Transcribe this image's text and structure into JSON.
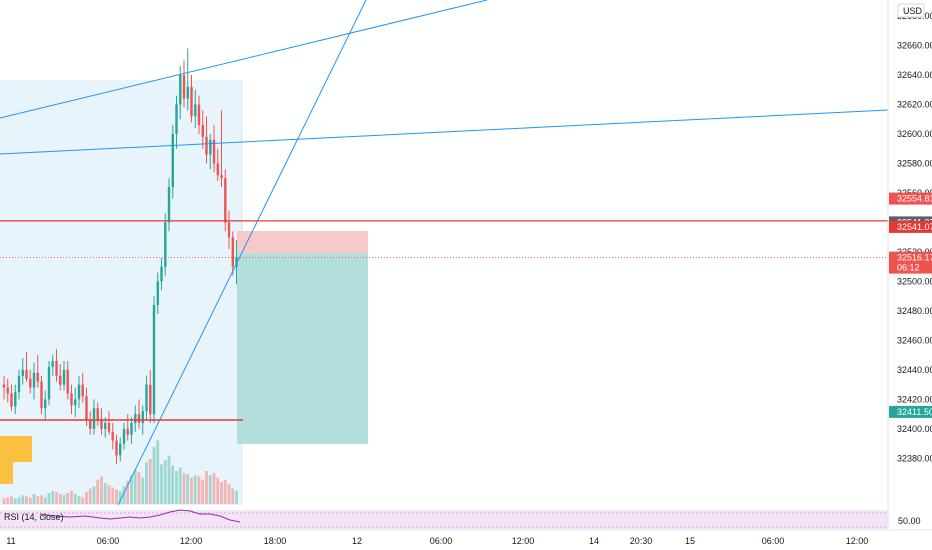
{
  "currency": "USD",
  "indicator_label": "RSI (14, close)",
  "rsi_level": "50.00",
  "colors": {
    "up": "#26a69a",
    "down": "#ef5350",
    "hline": "#e53935",
    "trend": "#2196f3",
    "range_fill": "#e8f4fb",
    "target_zone": "#b2dfdb",
    "stop_zone": "#f8c9c9",
    "rsi_band": "#f3e5f5",
    "rsi_line": "#9c27b0",
    "highlight": "#f9c13f"
  },
  "chart_data": {
    "type": "candlestick",
    "yaxis": {
      "ticks": [
        "32680.00",
        "32660.00",
        "32640.00",
        "32620.00",
        "32600.00",
        "32580.00",
        "32560.00",
        "32540.00",
        "32520.00",
        "32500.00",
        "32480.00",
        "32460.00",
        "32440.00",
        "32420.00",
        "32400.00",
        "32380.00"
      ],
      "range": [
        32366,
        32696
      ]
    },
    "xaxis": {
      "ticks": [
        "11",
        "06:00",
        "12:00",
        "18:00",
        "12",
        "06:00",
        "12:00",
        "14",
        "20:30",
        "15",
        "06:00",
        "12:00"
      ]
    },
    "price_tags": [
      {
        "value": "32554.81",
        "price": 32554.81,
        "kind": "stop"
      },
      {
        "value": "32541.37",
        "price": 32541.37,
        "kind": "entry"
      },
      {
        "value": "32541.07",
        "price": 32541.07,
        "kind": "line"
      },
      {
        "value": "32516.17",
        "price": 32516.17,
        "kind": "last",
        "sub": "06:12"
      },
      {
        "value": "32411.50",
        "price": 32411.5,
        "kind": "target"
      }
    ],
    "horizontal_lines": [
      32541.07,
      32406
    ],
    "position": {
      "entry": 32541.37,
      "stop": 32554.81,
      "target": 32411.5
    },
    "candles": [
      [
        32430,
        32436,
        32420,
        32428
      ],
      [
        32428,
        32434,
        32418,
        32424
      ],
      [
        32424,
        32430,
        32412,
        32415
      ],
      [
        32415,
        32430,
        32410,
        32425
      ],
      [
        32425,
        32440,
        32420,
        32436
      ],
      [
        32436,
        32448,
        32430,
        32440
      ],
      [
        32440,
        32452,
        32432,
        32434
      ],
      [
        32434,
        32440,
        32424,
        32428
      ],
      [
        32428,
        32445,
        32420,
        32438
      ],
      [
        32438,
        32450,
        32428,
        32432
      ],
      [
        32432,
        32436,
        32410,
        32414
      ],
      [
        32414,
        32426,
        32406,
        32420
      ],
      [
        32420,
        32446,
        32416,
        32442
      ],
      [
        32442,
        32450,
        32436,
        32446
      ],
      [
        32446,
        32454,
        32432,
        32436
      ],
      [
        32436,
        32444,
        32426,
        32430
      ],
      [
        32430,
        32446,
        32426,
        32440
      ],
      [
        32440,
        32446,
        32420,
        32424
      ],
      [
        32424,
        32430,
        32410,
        32416
      ],
      [
        32416,
        32428,
        32408,
        32420
      ],
      [
        32420,
        32436,
        32414,
        32430
      ],
      [
        32430,
        32438,
        32418,
        32422
      ],
      [
        32422,
        32428,
        32402,
        32406
      ],
      [
        32406,
        32412,
        32396,
        32400
      ],
      [
        32400,
        32420,
        32396,
        32414
      ],
      [
        32414,
        32418,
        32402,
        32406
      ],
      [
        32406,
        32414,
        32396,
        32400
      ],
      [
        32400,
        32408,
        32394,
        32404
      ],
      [
        32404,
        32412,
        32396,
        32398
      ],
      [
        32398,
        32404,
        32386,
        32392
      ],
      [
        32392,
        32396,
        32376,
        32382
      ],
      [
        32382,
        32394,
        32378,
        32390
      ],
      [
        32390,
        32404,
        32386,
        32400
      ],
      [
        32400,
        32410,
        32392,
        32396
      ],
      [
        32396,
        32408,
        32390,
        32404
      ],
      [
        32404,
        32416,
        32398,
        32410
      ],
      [
        32410,
        32420,
        32400,
        32404
      ],
      [
        32404,
        32416,
        32396,
        32412
      ],
      [
        32412,
        32436,
        32406,
        32430
      ],
      [
        32430,
        32440,
        32404,
        32410
      ],
      [
        32410,
        32490,
        32404,
        32484
      ],
      [
        32484,
        32506,
        32478,
        32500
      ],
      [
        32500,
        32516,
        32494,
        32510
      ],
      [
        32510,
        32546,
        32504,
        32540
      ],
      [
        32540,
        32570,
        32534,
        32564
      ],
      [
        32564,
        32606,
        32556,
        32600
      ],
      [
        32600,
        32626,
        32590,
        32620
      ],
      [
        32620,
        32646,
        32610,
        32640
      ],
      [
        32640,
        32650,
        32618,
        32624
      ],
      [
        32624,
        32658,
        32616,
        32632
      ],
      [
        32632,
        32640,
        32608,
        32612
      ],
      [
        32612,
        32630,
        32604,
        32620
      ],
      [
        32620,
        32626,
        32600,
        32606
      ],
      [
        32606,
        32616,
        32590,
        32598
      ],
      [
        32598,
        32612,
        32580,
        32586
      ],
      [
        32586,
        32600,
        32576,
        32596
      ],
      [
        32596,
        32606,
        32574,
        32580
      ],
      [
        32580,
        32590,
        32568,
        32572
      ],
      [
        32572,
        32616,
        32564,
        32570
      ],
      [
        32570,
        32576,
        32534,
        32540
      ],
      [
        32540,
        32548,
        32522,
        32530
      ],
      [
        32530,
        32534,
        32504,
        32510
      ],
      [
        32510,
        32528,
        32498,
        32516
      ]
    ],
    "volume": [
      5,
      6,
      7,
      5,
      6,
      8,
      7,
      6,
      9,
      7,
      8,
      6,
      10,
      12,
      11,
      9,
      8,
      10,
      12,
      9,
      7,
      6,
      11,
      14,
      16,
      22,
      25,
      19,
      17,
      15,
      13,
      12,
      16,
      21,
      26,
      31,
      29,
      24,
      38,
      41,
      52,
      58,
      36,
      40,
      44,
      35,
      30,
      33,
      28,
      27,
      24,
      26,
      25,
      22,
      30,
      26,
      28,
      24,
      20,
      22,
      18,
      14,
      12
    ]
  }
}
